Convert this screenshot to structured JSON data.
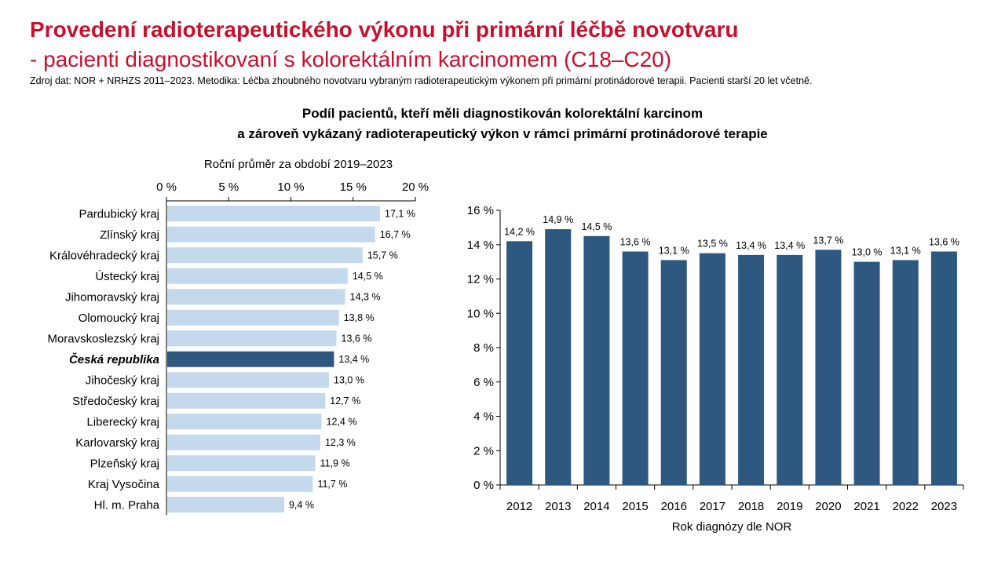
{
  "header": {
    "title_line1": "Provedení radioterapeutického výkonu při primární léčbě novotvaru",
    "title_line2": "- pacienti diagnostikovaní s kolorektálním karcinomem (C18–C20)",
    "source": "Zdroj dat: NOR + NRHZS 2011–2023. Metodika: Léčba zhoubného novotvaru vybraným radioterapeutickým výkonem při primární protinádorové terapii. Pacienti starší 20 let včetně.",
    "subtitle_line1": "Podíl pacientů, kteří měli diagnostikován kolorektální karcinom",
    "subtitle_line2": "a zároveň vykázaný radioterapeutický výkon v rámci primární protinádorové terapie"
  },
  "colors": {
    "title": "#c8102e",
    "bar_light": "#c5d9ec",
    "bar_dark": "#2e5880",
    "axis": "#000000"
  },
  "chart_data": [
    {
      "type": "bar",
      "orientation": "horizontal",
      "title": "Roční průměr za období 2019–2023",
      "xlim": [
        0,
        20
      ],
      "ticks": [
        "0 %",
        "5 %",
        "10 %",
        "15 %",
        "20 %"
      ],
      "tick_values": [
        0,
        5,
        10,
        15,
        20
      ],
      "categories": [
        "Pardubický kraj",
        "Zlínský kraj",
        "Královéhradecký kraj",
        "Ústecký kraj",
        "Jihomoravský kraj",
        "Olomoucký kraj",
        "Moravskoslezský kraj",
        "Česká republika",
        "Jihočeský kraj",
        "Středočeský kraj",
        "Liberecký kraj",
        "Karlovarský kraj",
        "Plzeňský kraj",
        "Kraj Vysočina",
        "Hl. m. Praha"
      ],
      "values": [
        17.1,
        16.7,
        15.7,
        14.5,
        14.3,
        13.8,
        13.6,
        13.4,
        13.0,
        12.7,
        12.4,
        12.3,
        11.9,
        11.7,
        9.4
      ],
      "labels": [
        "17,1 %",
        "16,7 %",
        "15,7 %",
        "14,5 %",
        "14,3 %",
        "13,8 %",
        "13,6 %",
        "13,4 %",
        "13,0 %",
        "12,7 %",
        "12,4 %",
        "12,3 %",
        "11,9 %",
        "11,7 %",
        "9,4 %"
      ],
      "highlight": "Česká republika",
      "grid": false
    },
    {
      "type": "bar",
      "orientation": "vertical",
      "xlabel": "Rok diagnózy dle NOR",
      "ylim": [
        0,
        16
      ],
      "ticks": [
        "0 %",
        "2 %",
        "4 %",
        "6 %",
        "8 %",
        "10 %",
        "12 %",
        "14 %",
        "16 %"
      ],
      "tick_values": [
        0,
        2,
        4,
        6,
        8,
        10,
        12,
        14,
        16
      ],
      "categories": [
        "2012",
        "2013",
        "2014",
        "2015",
        "2016",
        "2017",
        "2018",
        "2019",
        "2020",
        "2021",
        "2022",
        "2023"
      ],
      "values": [
        14.2,
        14.9,
        14.5,
        13.6,
        13.1,
        13.5,
        13.4,
        13.4,
        13.7,
        13.0,
        13.1,
        13.6
      ],
      "labels": [
        "14,2 %",
        "14,9 %",
        "14,5 %",
        "13,6 %",
        "13,1 %",
        "13,5 %",
        "13,4 %",
        "13,4 %",
        "13,7 %",
        "13,0 %",
        "13,1 %",
        "13,6 %"
      ],
      "grid": false
    }
  ]
}
